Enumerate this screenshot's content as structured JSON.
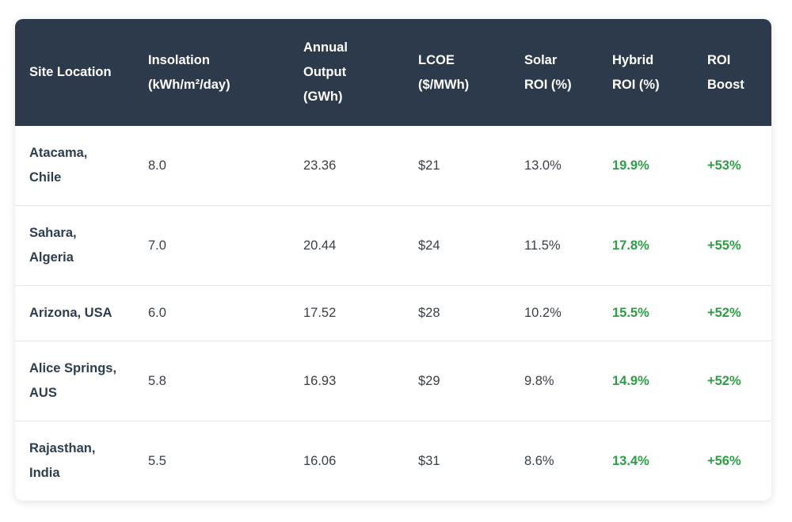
{
  "header": {
    "cells": [
      "Site Location",
      "Insolation\n(kWh/m²/day)",
      "Annual\nOutput\n(GWh)",
      "LCOE\n($/MWh)",
      "Solar\nROI (%)",
      "Hybrid\nROI (%)",
      "ROI\nBoost"
    ]
  },
  "chart_data": {
    "type": "table",
    "columns": [
      "Site Location",
      "Insolation (kWh/m²/day)",
      "Annual Output (GWh)",
      "LCOE ($/MWh)",
      "Solar ROI (%)",
      "Hybrid ROI (%)",
      "ROI Boost"
    ],
    "rows": [
      {
        "site_location": "Atacama, Chile",
        "insolation_kwh_m2_day": "8.0",
        "annual_output_gwh": "23.36",
        "lcoe_usd_per_mwh": "$21",
        "solar_roi_pct": "13.0%",
        "hybrid_roi_pct": "19.9%",
        "roi_boost": "+53%"
      },
      {
        "site_location": "Sahara, Algeria",
        "insolation_kwh_m2_day": "7.0",
        "annual_output_gwh": "20.44",
        "lcoe_usd_per_mwh": "$24",
        "solar_roi_pct": "11.5%",
        "hybrid_roi_pct": "17.8%",
        "roi_boost": "+55%"
      },
      {
        "site_location": "Arizona, USA",
        "insolation_kwh_m2_day": "6.0",
        "annual_output_gwh": "17.52",
        "lcoe_usd_per_mwh": "$28",
        "solar_roi_pct": "10.2%",
        "hybrid_roi_pct": "15.5%",
        "roi_boost": "+52%"
      },
      {
        "site_location": "Alice Springs, AUS",
        "insolation_kwh_m2_day": "5.8",
        "annual_output_gwh": "16.93",
        "lcoe_usd_per_mwh": "$29",
        "solar_roi_pct": "9.8%",
        "hybrid_roi_pct": "14.9%",
        "roi_boost": "+52%"
      },
      {
        "site_location": "Rajasthan, India",
        "insolation_kwh_m2_day": "5.5",
        "annual_output_gwh": "16.06",
        "lcoe_usd_per_mwh": "$31",
        "solar_roi_pct": "8.6%",
        "hybrid_roi_pct": "13.4%",
        "roi_boost": "+56%"
      }
    ]
  },
  "colors": {
    "header_background": "#2d3a4c",
    "header_text": "#ffffff",
    "body_text": "#3a4047",
    "location_text": "#2c3e50",
    "positive_green": "#2e9e44",
    "row_divider": "#e4e7ea",
    "card_background": "#ffffff"
  }
}
